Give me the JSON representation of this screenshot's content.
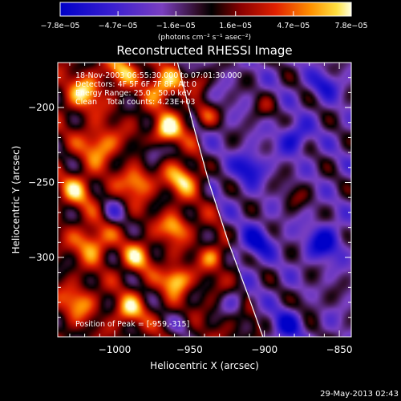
{
  "chart_data": {
    "type": "heatmap",
    "title": "Reconstructed RHESSI Image",
    "xlabel": "Heliocentric X (arcsec)",
    "ylabel": "Heliocentric Y (arcsec)",
    "xlim": [
      -1038,
      -842
    ],
    "ylim": [
      -353,
      -170
    ],
    "x_ticks": [
      -1000,
      -950,
      -900,
      -850
    ],
    "x_tick_labels": [
      "−1000",
      "−950",
      "−900",
      "−850"
    ],
    "y_ticks": [
      -200,
      -250,
      -300
    ],
    "y_tick_labels": [
      "−200",
      "−250",
      "−300"
    ],
    "colorbar": {
      "min": -7.8e-05,
      "max": 7.8e-05,
      "ticks": [
        -7.8e-05,
        -4.7e-05,
        -1.6e-05,
        1.6e-05,
        4.7e-05,
        7.8e-05
      ],
      "tick_labels": [
        "−7.8e−05",
        "−4.7e−05",
        "−1.6e−05",
        "1.6e−05",
        "4.7e−05",
        "7.8e−05"
      ],
      "unit_label": "(photons cm⁻² s⁻¹ asec⁻²)"
    },
    "annotations": [
      "18-Nov-2003 06:55:30.000 to 07:01:30.000",
      "Detectors: 4F 5F 6F 7F 8F, Att 0",
      "Energy Range: 25.0 - 50.0 keV",
      "Clean    Total counts: 4.23E+03"
    ],
    "peak_label": "Position of Peak = [-959,-315]",
    "peak": {
      "x": -959,
      "y": -315
    },
    "limb_curve": [
      [
        -958,
        -170
      ],
      [
        -948,
        -210
      ],
      [
        -937,
        -250
      ],
      [
        -924,
        -290
      ],
      [
        -911,
        -325
      ],
      [
        -901,
        -353
      ]
    ],
    "bright_regions": [
      {
        "x": -1020,
        "y": -190,
        "amp": 0.8,
        "r": 12
      },
      {
        "x": -995,
        "y": -175,
        "amp": 0.7,
        "r": 10
      },
      {
        "x": -968,
        "y": -185,
        "amp": 0.85,
        "r": 11
      },
      {
        "x": -945,
        "y": -182,
        "amp": 0.7,
        "r": 9
      },
      {
        "x": -1010,
        "y": -225,
        "amp": 0.75,
        "r": 12
      },
      {
        "x": -965,
        "y": -215,
        "amp": 0.95,
        "r": 10
      },
      {
        "x": -940,
        "y": -205,
        "amp": 0.75,
        "r": 9
      },
      {
        "x": -1025,
        "y": -255,
        "amp": 0.7,
        "r": 11
      },
      {
        "x": -985,
        "y": -250,
        "amp": 0.8,
        "r": 10
      },
      {
        "x": -955,
        "y": -248,
        "amp": 0.85,
        "r": 10
      },
      {
        "x": -1015,
        "y": -290,
        "amp": 0.75,
        "r": 12
      },
      {
        "x": -985,
        "y": -300,
        "amp": 0.7,
        "r": 10
      },
      {
        "x": -960,
        "y": -280,
        "amp": 0.8,
        "r": 9
      },
      {
        "x": -1025,
        "y": -330,
        "amp": 0.65,
        "r": 11
      },
      {
        "x": -990,
        "y": -335,
        "amp": 0.75,
        "r": 10
      },
      {
        "x": -959,
        "y": -315,
        "amp": 1.0,
        "r": 9
      },
      {
        "x": -935,
        "y": -300,
        "amp": 0.55,
        "r": 8
      },
      {
        "x": -900,
        "y": -200,
        "amp": 0.35,
        "r": 9
      },
      {
        "x": -880,
        "y": -260,
        "amp": 0.35,
        "r": 9
      },
      {
        "x": -870,
        "y": -330,
        "amp": 0.3,
        "r": 8
      }
    ],
    "dark_regions": [
      {
        "x": -975,
        "y": -230,
        "amp": 0.6,
        "r": 8
      },
      {
        "x": -1000,
        "y": -270,
        "amp": 0.5,
        "r": 8
      },
      {
        "x": -955,
        "y": -345,
        "amp": 0.4,
        "r": 8
      },
      {
        "x": -910,
        "y": -240,
        "amp": 0.8,
        "r": 10
      },
      {
        "x": -880,
        "y": -220,
        "amp": 0.7,
        "r": 10
      },
      {
        "x": -905,
        "y": -290,
        "amp": 0.8,
        "r": 10
      },
      {
        "x": -860,
        "y": -290,
        "amp": 0.9,
        "r": 11
      },
      {
        "x": -885,
        "y": -345,
        "amp": 0.7,
        "r": 10
      },
      {
        "x": -920,
        "y": -330,
        "amp": 0.6,
        "r": 9
      },
      {
        "x": -860,
        "y": -185,
        "amp": 0.6,
        "r": 9
      }
    ],
    "grid": false
  },
  "footer": {
    "timestamp": "29-May-2013 02:43"
  }
}
